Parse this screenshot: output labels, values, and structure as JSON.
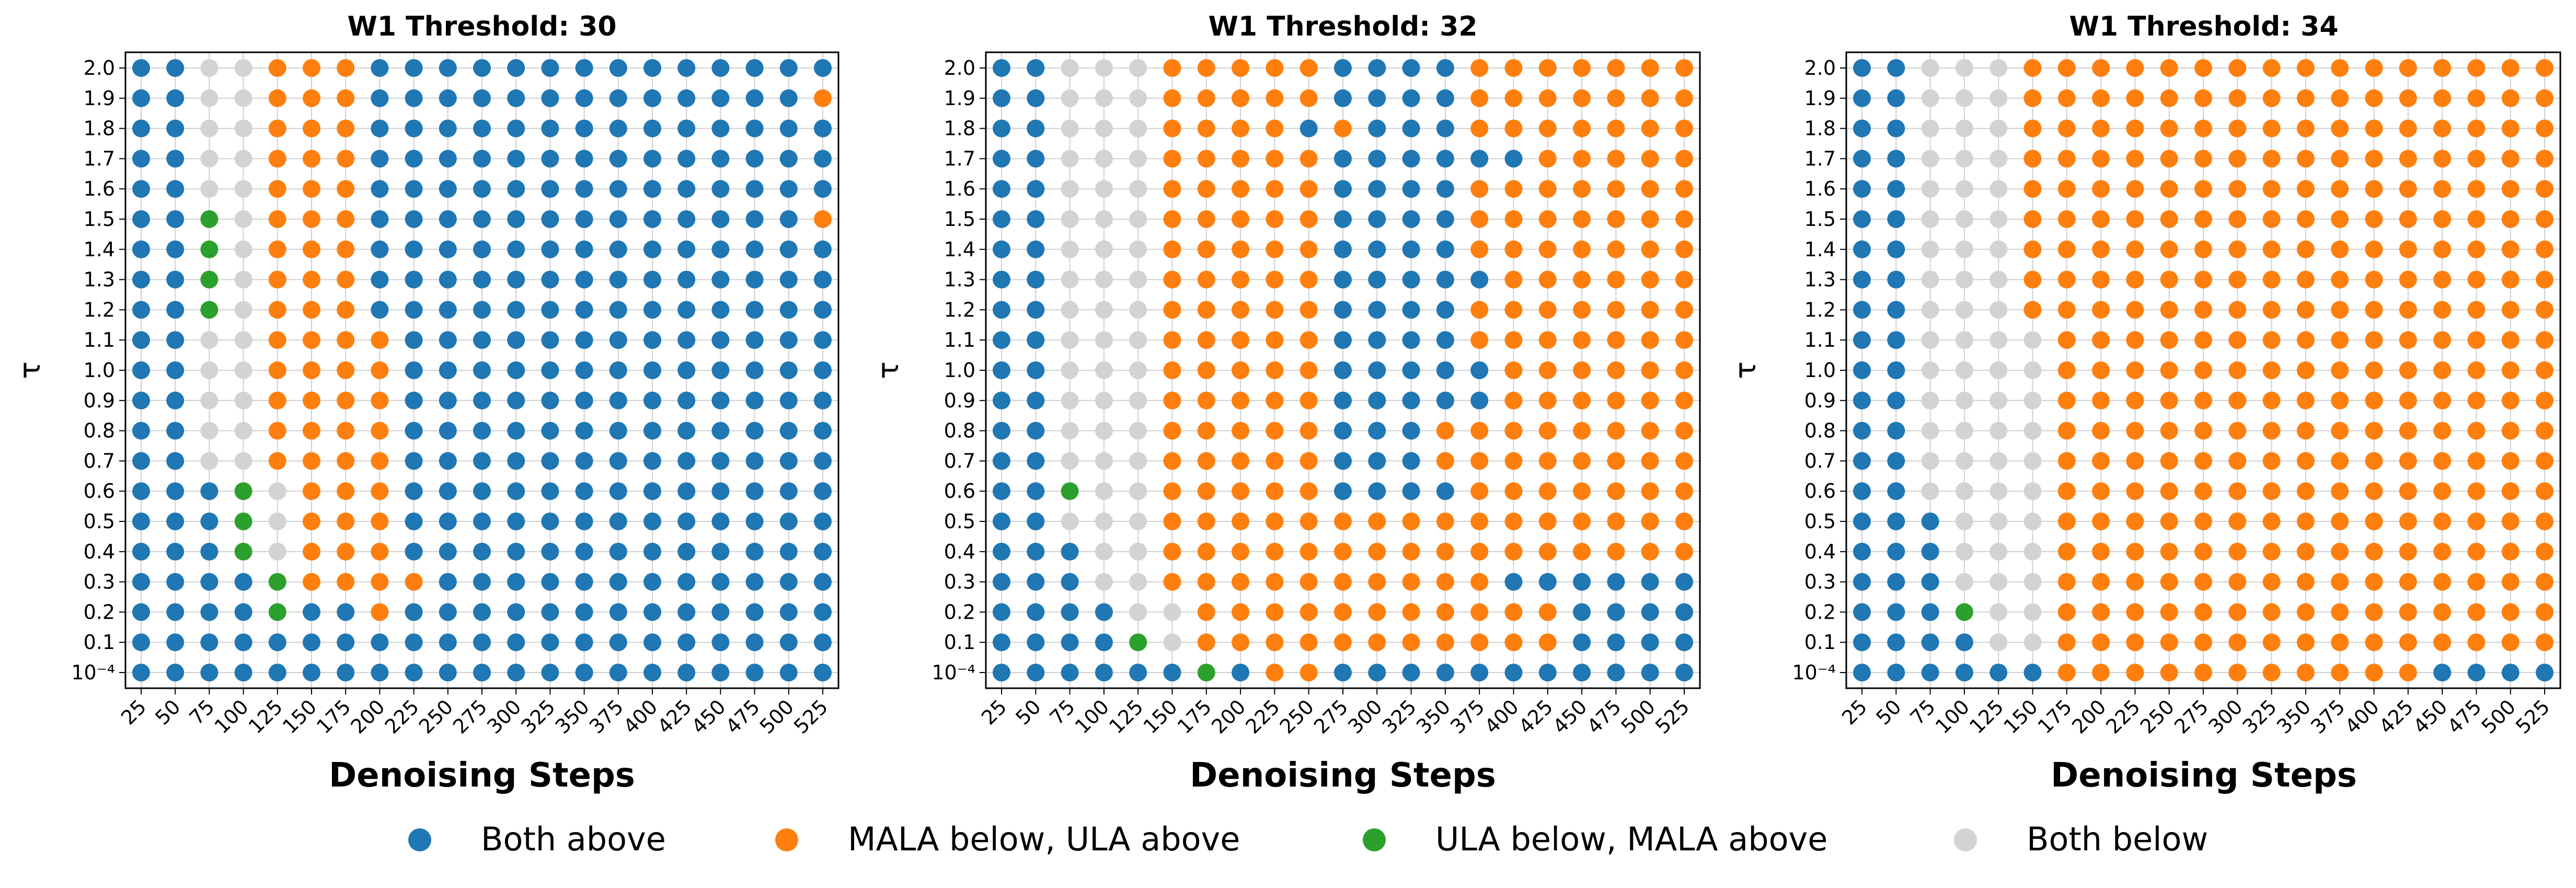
{
  "figure": {
    "categories": {
      "both_above": "Both above",
      "mala_below": "MALA below, ULA above",
      "ula_below": "ULA below, MALA above",
      "both_below": "Both below"
    },
    "colors": {
      "both_above": "#1f77b4",
      "mala_below": "#ff7f0e",
      "ula_below": "#2ca02c",
      "both_below": "#d3d3d3"
    },
    "legend": [
      {
        "key": "both_above",
        "label": "Both above"
      },
      {
        "key": "mala_below",
        "label": "MALA below, ULA above"
      },
      {
        "key": "ula_below",
        "label": "ULA below, MALA above"
      },
      {
        "key": "both_below",
        "label": "Both below"
      }
    ]
  },
  "chart_data": [
    {
      "type": "scatter",
      "title": "W1 Threshold: 30",
      "xlabel": "Denoising Steps",
      "ylabel": "τ",
      "x": [
        "25",
        "50",
        "75",
        "100",
        "125",
        "150",
        "175",
        "200",
        "225",
        "250",
        "275",
        "300",
        "325",
        "350",
        "375",
        "400",
        "425",
        "450",
        "475",
        "500",
        "525"
      ],
      "y": [
        "10⁻⁴",
        "0.1",
        "0.2",
        "0.3",
        "0.4",
        "0.5",
        "0.6",
        "0.7",
        "0.8",
        "0.9",
        "1.0",
        "1.1",
        "1.2",
        "1.3",
        "1.4",
        "1.5",
        "1.6",
        "1.7",
        "1.8",
        "1.9",
        "2.0"
      ],
      "legend_codes": {
        "B": "Both above",
        "M": "MALA below, ULA above",
        "U": "ULA below, MALA above",
        "N": "Both below"
      },
      "grid_rows_top_to_bottom": [
        "BBNNMMMBBBBBBBBBBBBBB",
        "BBNNMMMBBBBBBBBBBBBBM",
        "BBNNMMMBBBBBBBBBBBBBB",
        "BBNNMMMBBBBBBBBBBBBBB",
        "BBNNMMMBBBBBBBBBBBBBB",
        "BBUNMMMBBBBBBBBBBBBBM",
        "BBUNMMMBBBBBBBBBBBBBB",
        "BBUNMMMBBBBBBBBBBBBBB",
        "BBUNMMMBBBBBBBBBBBBBB",
        "BBNNMMMMBBBBBBBBBBBBB",
        "BBNNMMMMBBBBBBBBBBBBB",
        "BBNNMMMMBBBBBBBBBBBBB",
        "BBNNMMMMBBBBBBBBBBBBB",
        "BBNNMMMMBBBBBBBBBBBBB",
        "BBBUNMMMBBBBBBBBBBBBB",
        "BBBUNMMMBBBBBBBBBBBBB",
        "BBBUNMMMBBBBBBBBBBBBB",
        "BBBBUMMMMBBBBBBBBBBBB",
        "BBBBUBBMBBBBBBBBBBBBB",
        "BBBBBBBBBBBBBBBBBBBBB",
        "BBBBBBBBBBBBBBBBBBBBB"
      ]
    },
    {
      "type": "scatter",
      "title": "W1 Threshold: 32",
      "xlabel": "Denoising Steps",
      "ylabel": "τ",
      "x": [
        "25",
        "50",
        "75",
        "100",
        "125",
        "150",
        "175",
        "200",
        "225",
        "250",
        "275",
        "300",
        "325",
        "350",
        "375",
        "400",
        "425",
        "450",
        "475",
        "500",
        "525"
      ],
      "y": [
        "10⁻⁴",
        "0.1",
        "0.2",
        "0.3",
        "0.4",
        "0.5",
        "0.6",
        "0.7",
        "0.8",
        "0.9",
        "1.0",
        "1.1",
        "1.2",
        "1.3",
        "1.4",
        "1.5",
        "1.6",
        "1.7",
        "1.8",
        "1.9",
        "2.0"
      ],
      "legend_codes": {
        "B": "Both above",
        "M": "MALA below, ULA above",
        "U": "ULA below, MALA above",
        "N": "Both below"
      },
      "grid_rows_top_to_bottom": [
        "BBNNNMMMMMBBBBMMMMMMM",
        "BBNNNMMMMMBBBBMMMMMMM",
        "BBNNNMMMMBMBBBMMMMMMM",
        "BBNNNMMMMMBBBBBBMMMMM",
        "BBNNNMMMMMBBBBMMMMMMM",
        "BBNNNMMMMMBBBBMMMMMMM",
        "BBNNNMMMMMBBBBMMMMMMM",
        "BBNNNMMMMMBBBBBMMMMMM",
        "BBNNNMMMMMBBBBMMMMMMM",
        "BBNNNMMMMMBBBBMMMMMMM",
        "BBNNNMMMMMBBBBBMMMMMM",
        "BBNNNMMMMMBBBBBMMMMMM",
        "BBNNNMMMMMBBBMMMMMMMM",
        "BBNNNMMMMMBBBMMMMMMMM",
        "BBUNNMMMMMBBBBMMMMMMM",
        "BBNNNMMMMMMMMMMMMMMMM",
        "BBBNNMMMMMMMMMMMMMMMM",
        "BBBNNMMMMMMMMMMBBBBBB",
        "BBBBNNMMMMMMMMMMMBBBB",
        "BBBBUNMMMMMMMMMMMBBBB",
        "BBBBBBUBMMBBBBBBBBBBB"
      ]
    },
    {
      "type": "scatter",
      "title": "W1 Threshold: 34",
      "xlabel": "Denoising Steps",
      "ylabel": "τ",
      "x": [
        "25",
        "50",
        "75",
        "100",
        "125",
        "150",
        "175",
        "200",
        "225",
        "250",
        "275",
        "300",
        "325",
        "350",
        "375",
        "400",
        "425",
        "450",
        "475",
        "500",
        "525"
      ],
      "y": [
        "10⁻⁴",
        "0.1",
        "0.2",
        "0.3",
        "0.4",
        "0.5",
        "0.6",
        "0.7",
        "0.8",
        "0.9",
        "1.0",
        "1.1",
        "1.2",
        "1.3",
        "1.4",
        "1.5",
        "1.6",
        "1.7",
        "1.8",
        "1.9",
        "2.0"
      ],
      "legend_codes": {
        "B": "Both above",
        "M": "MALA below, ULA above",
        "U": "ULA below, MALA above",
        "N": "Both below"
      },
      "grid_rows_top_to_bottom": [
        "BBNNNMMMMMMMMMMMMMMMM",
        "BBNNNMMMMMMMMMMMMMMMM",
        "BBNNNMMMMMMMMMMMMMMMM",
        "BBNNNMMMMMMMMMMMMMMMM",
        "BBNNNMMMMMMMMMMMMMMMM",
        "BBNNNMMMMMMMMMMMMMMMM",
        "BBNNNMMMMMMMMMMMMMMMM",
        "BBNNNMMMMMMMMMMMMMMMM",
        "BBNNNMMMMMMMMMMMMMMMM",
        "BBNNNNMMMMMMMMMMMMMMM",
        "BBNNNNMMMMMMMMMMMMMMM",
        "BBNNNNMMMMMMMMMMMMMMM",
        "BBNNNNMMMMMMMMMMMMMMM",
        "BBNNNNMMMMMMMMMMMMMMM",
        "BBNNNNMMMMMMMMMMMMMMM",
        "BBBNNNMMMMMMMMMMMMMMM",
        "BBBNNNMMMMMMMMMMMMMMM",
        "BBBNNNMMMMMMMMMMMMMMM",
        "BBBUNNMMMMMMMMMMMMMMM",
        "BBBBNNMMMMMMMMMMMMMMM",
        "BBBBBBMMMMMMMMMMMBBBB"
      ]
    }
  ]
}
